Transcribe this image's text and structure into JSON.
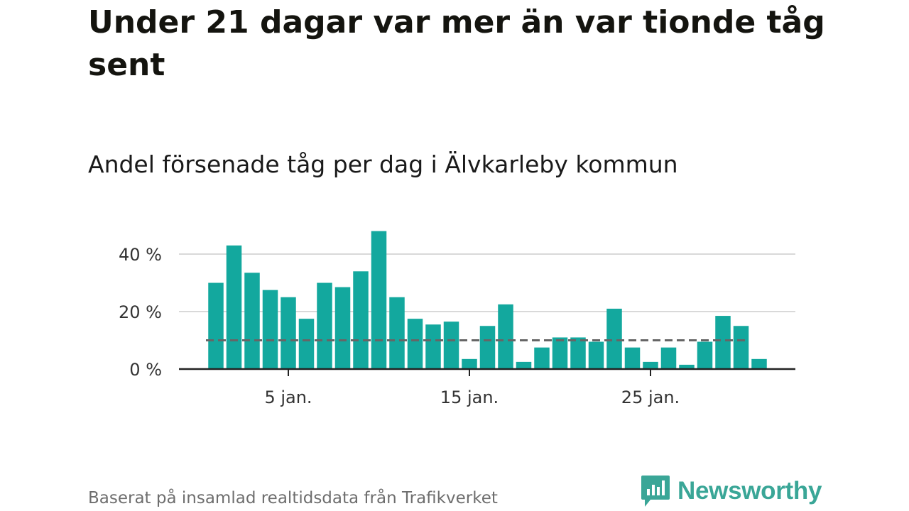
{
  "title": "Under 21 dagar var mer än var tionde tåg sent",
  "subtitle": "Andel försenade tåg per dag i Älvkarleby kommun",
  "source": "Baserat på insamlad realtidsdata från Trafikverket",
  "brand": {
    "name": "Newsworthy",
    "icon": "newsworthy-logo-icon",
    "color": "#3aa697"
  },
  "colors": {
    "bar": "#13a89e",
    "reference_line": "#666666",
    "grid": "#d9d9d9",
    "axis": "#222222"
  },
  "chart_data": {
    "type": "bar",
    "x_unit": "day of January",
    "categories": [
      1,
      2,
      3,
      4,
      5,
      6,
      7,
      8,
      9,
      10,
      11,
      12,
      13,
      14,
      15,
      16,
      17,
      18,
      19,
      20,
      21,
      22,
      23,
      24,
      25,
      26,
      27,
      28,
      29,
      30,
      31
    ],
    "values": [
      30,
      43,
      33.5,
      27.5,
      25,
      17.5,
      30,
      28.5,
      34,
      48,
      25,
      17.5,
      15.5,
      16.5,
      3.5,
      15,
      22.5,
      2.5,
      7.5,
      11,
      11,
      9.5,
      21,
      7.5,
      2.5,
      7.5,
      1.5,
      9.5,
      18.5,
      15,
      3.5
    ],
    "reference_value": 10,
    "ylim": [
      0,
      48
    ],
    "yticks": [
      {
        "value": 0,
        "label": "0 %"
      },
      {
        "value": 20,
        "label": "20 %"
      },
      {
        "value": 40,
        "label": "40 %"
      }
    ],
    "xticks": [
      {
        "value": 5,
        "label": "5 jan."
      },
      {
        "value": 15,
        "label": "15 jan."
      },
      {
        "value": 25,
        "label": "25 jan."
      }
    ],
    "grid": true,
    "legend": "none"
  }
}
